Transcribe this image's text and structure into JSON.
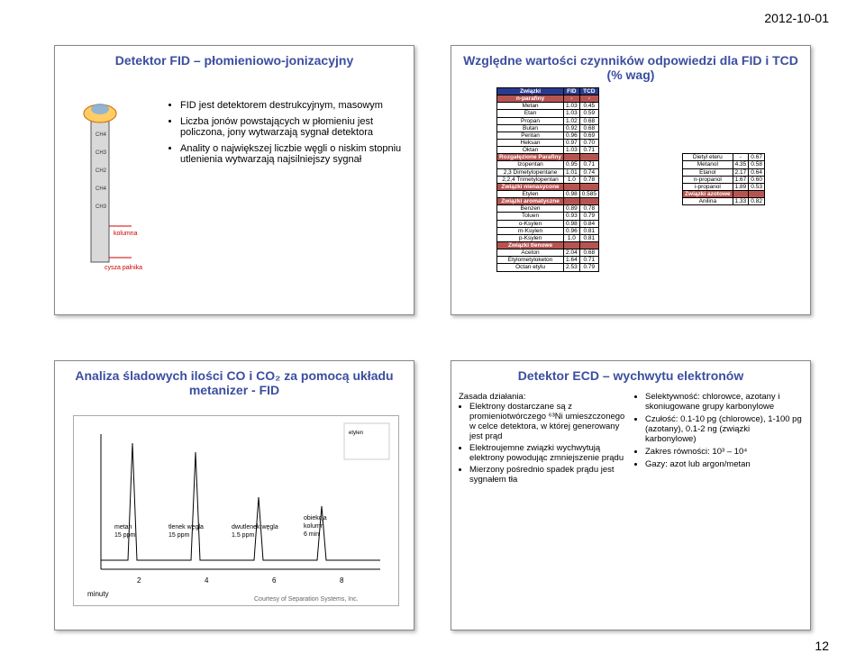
{
  "date": "2012-10-01",
  "pagenum": "12",
  "slides": {
    "tl": {
      "title": "Detektor FID – płomieniowo-jonizacyjny",
      "bullets": [
        "FID jest detektorem destrukcyjnym, masowym",
        "Liczba jonów powstających w płomieniu jest policzona, jony wytwarzają sygnał detektora",
        "Anality o największej liczbie węgli o niskim stopniu utlenienia wytwarzają najsilniejszy sygnał"
      ],
      "diagram": {
        "labels": [
          "CH4",
          "CH3",
          "CH2",
          "CH4",
          "CH3",
          "kolumna",
          "cysza palnika"
        ],
        "label_color": "#cc0000",
        "tube_color": "#d9d9d9"
      }
    },
    "tr": {
      "title": "Względne wartości czynników odpowiedzi dla FID i TCD (% wag)",
      "table1": {
        "headers": [
          "Związki",
          "FID",
          "TCD"
        ],
        "section_color": "#b85450",
        "header_color": "#2a3b8f",
        "rows": [
          [
            "n-parafiny",
            "-",
            "-"
          ],
          [
            "Metan",
            "1.03",
            "0.45"
          ],
          [
            "Etan",
            "1.03",
            "0.59"
          ],
          [
            "Propan",
            "1.02",
            "0.68"
          ],
          [
            "Butan",
            "0.92",
            "0.68"
          ],
          [
            "Pentan",
            "0.96",
            "0.69"
          ],
          [
            "Heksan",
            "0.97",
            "0.70"
          ],
          [
            "Oktan",
            "1.03",
            "0.71"
          ],
          [
            "Rozgałęzione Parafiny",
            "",
            ""
          ],
          [
            "Izopentan",
            "0.95",
            "0.71"
          ],
          [
            "2,3 Dimetylopentane",
            "1.01",
            "0.74"
          ],
          [
            "2,2,4 Trimetylopentan",
            "1.0",
            "0.78"
          ],
          [
            "Związki nienasycone",
            "",
            ""
          ],
          [
            "Etylen",
            "0.98",
            "0.585"
          ],
          [
            "Związki aromatyczne",
            "",
            ""
          ],
          [
            "Benzen",
            "0.89",
            "0.78"
          ],
          [
            "Toluen",
            "0.93",
            "0.79"
          ],
          [
            "o-Ksylen",
            "0.98",
            "0.84"
          ],
          [
            "m-Ksylen",
            "0.96",
            "0.81"
          ],
          [
            "p-Ksylen",
            "1.0",
            "0.81"
          ],
          [
            "Związki tlenowe",
            "",
            ""
          ],
          [
            "Aceton",
            "2.04",
            "0.68"
          ],
          [
            "Etylometyloketon",
            "1.64",
            "0.71"
          ],
          [
            "Octan etylu",
            "2.53",
            "0.79"
          ]
        ],
        "section_rows": [
          0,
          8,
          12,
          14,
          20
        ]
      },
      "table2": {
        "rows": [
          [
            "Dietyl eteru",
            "-",
            "0.67"
          ],
          [
            "Metanol",
            "4.35",
            "0.58"
          ],
          [
            "Etanol",
            "2.17",
            "0.64"
          ],
          [
            "n-propanol",
            "1.67",
            "0.60"
          ],
          [
            "i-propanol",
            "1.89",
            "0.53"
          ],
          [
            "Związki azotowe",
            "",
            ""
          ],
          [
            "Anilina",
            "1.33",
            "0.82"
          ]
        ],
        "section_rows": [
          5
        ]
      }
    },
    "bl": {
      "title": "Analiza śladowych ilości CO i CO₂ za pomocą układu metanizer - FID",
      "chart": {
        "type": "chromatogram",
        "x_ticks": [
          2,
          4,
          6,
          8
        ],
        "x_unit": "minuty",
        "peaks": [
          {
            "label": "metan 15 ppm",
            "x": 1.5
          },
          {
            "label": "tlenek węgla 15 ppm",
            "x": 3.5
          },
          {
            "label": "dwutlenek węgla 1.5 ppm",
            "x": 5.5
          },
          {
            "label": "obiekcja kolumn 6 min",
            "x": 7.5
          }
        ],
        "credit": "Courtesy of Separation Systems, Inc.",
        "line_color": "#000000",
        "background_color": "#ffffff"
      }
    },
    "br": {
      "title": "Detektor ECD – wychwytu elektronów",
      "left_heading": "Zasada działania:",
      "left_bullets": [
        "Elektrony dostarczane są z promieniotwórczego ⁶³Ni umieszczonego w celce detektora, w której generowany jest prąd",
        "Elektroujemne związki wychwytują elektrony powodując zmniejszenie prądu",
        "Mierzony pośrednio spadek prądu jest sygnałem tła"
      ],
      "right_bullets": [
        "Selektywność: chlorowce, azotany i skoniugowane grupy karbonylowe",
        "Czułość: 0.1-10 pg (chlorowce), 1-100 pg (azotany), 0.1-2 ng (związki karbonylowe)",
        "Zakres równości: 10³ – 10⁴",
        "Gazy: azot lub argon/metan"
      ]
    }
  }
}
